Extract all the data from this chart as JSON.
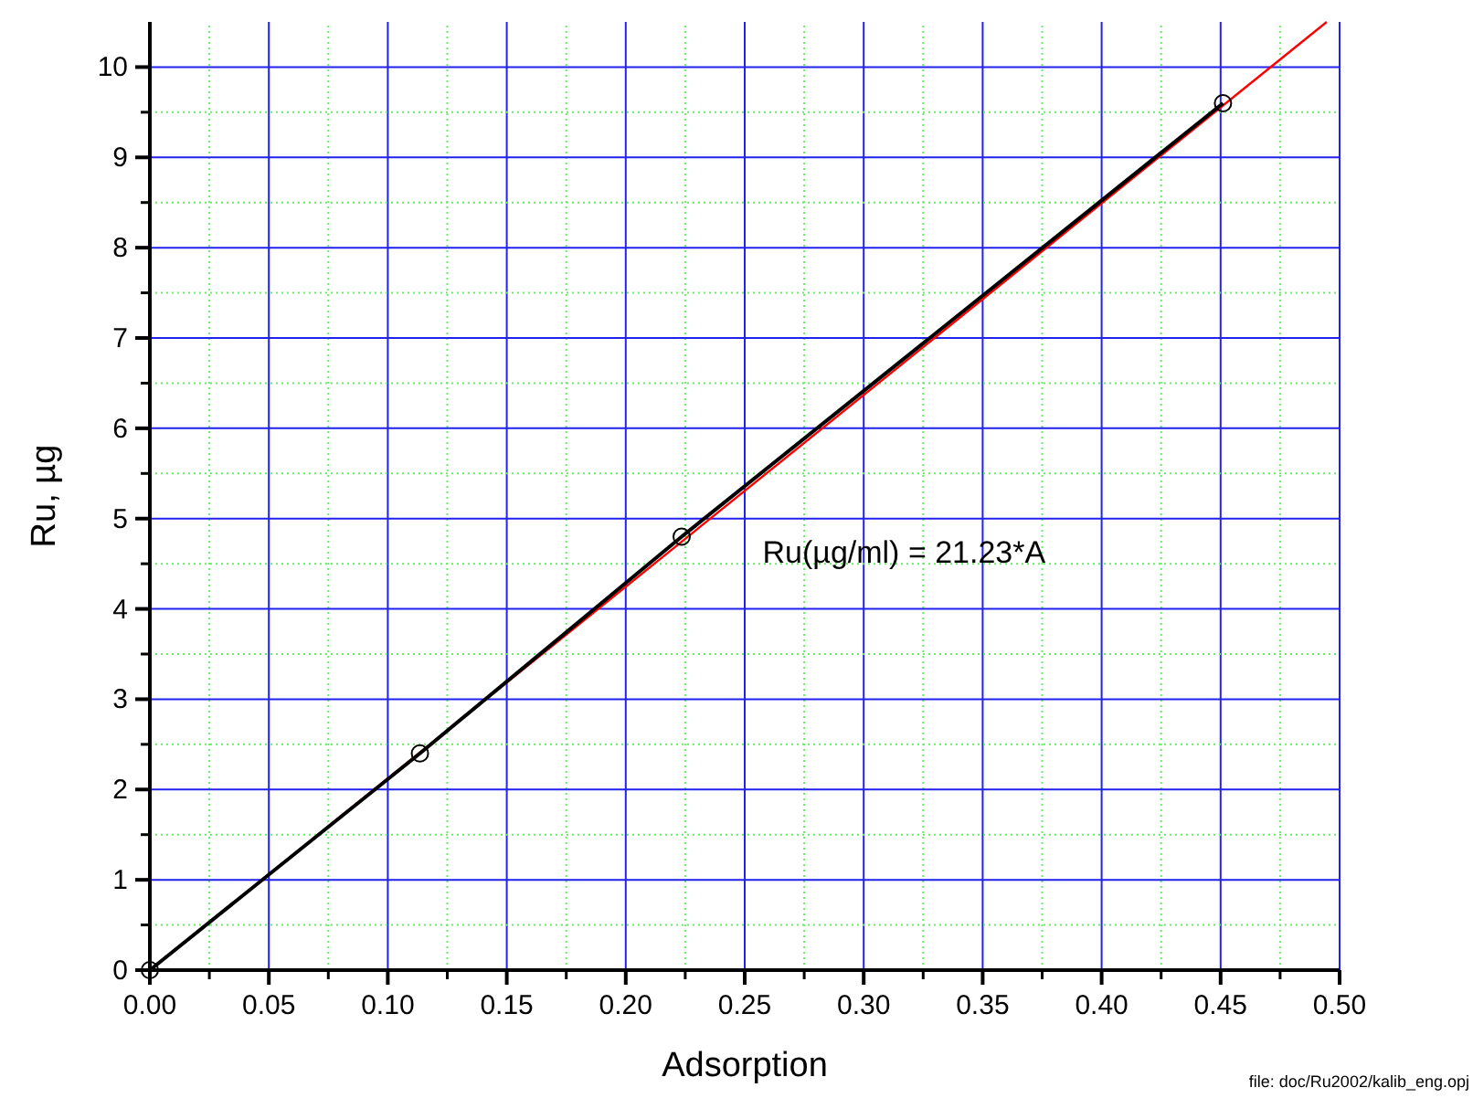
{
  "chart_data": {
    "type": "line",
    "xlabel": "Adsorption",
    "ylabel": "Ru, µg",
    "series": [
      {
        "color": "#000000",
        "marker": "circle",
        "x": [
          0,
          0.1135,
          0.2235,
          0.451
        ],
        "values": [
          0,
          2.4,
          4.8,
          9.6
        ]
      },
      {
        "color": "#ff0000",
        "marker": "none",
        "x": [
          0,
          0.4946
        ],
        "values": [
          0,
          10.5
        ]
      }
    ],
    "xlim": [
      0,
      0.5
    ],
    "xticks": [
      {
        "value": 0,
        "label": "0.00"
      },
      {
        "value": 0.025,
        "label": null
      },
      {
        "value": 0.05,
        "label": "0.05"
      },
      {
        "value": 0.075,
        "label": null
      },
      {
        "value": 0.1,
        "label": "0.10"
      },
      {
        "value": 0.125,
        "label": null
      },
      {
        "value": 0.15,
        "label": "0.15"
      },
      {
        "value": 0.175,
        "label": null
      },
      {
        "value": 0.2,
        "label": "0.20"
      },
      {
        "value": 0.225,
        "label": null
      },
      {
        "value": 0.25,
        "label": "0.25"
      },
      {
        "value": 0.275,
        "label": null
      },
      {
        "value": 0.3,
        "label": "0.30"
      },
      {
        "value": 0.325,
        "label": null
      },
      {
        "value": 0.35,
        "label": "0.35"
      },
      {
        "value": 0.375,
        "label": null
      },
      {
        "value": 0.4,
        "label": "0.40"
      },
      {
        "value": 0.425,
        "label": null
      },
      {
        "value": 0.45,
        "label": "0.45"
      },
      {
        "value": 0.475,
        "label": null
      },
      {
        "value": 0.5,
        "label": "0.50"
      }
    ],
    "ylim": [
      0,
      10.5
    ],
    "yticks": [
      0,
      {
        "value": 0.5,
        "label": null
      },
      1,
      {
        "value": 1.5,
        "label": null
      },
      2,
      {
        "value": 2.5,
        "label": null
      },
      3,
      {
        "value": 3.5,
        "label": null
      },
      4,
      {
        "value": 4.5,
        "label": null
      },
      5,
      {
        "value": 5.5,
        "label": null
      },
      6,
      {
        "value": 6.5,
        "label": null
      },
      7,
      {
        "value": 7.5,
        "label": null
      },
      8,
      {
        "value": 8.5,
        "label": null
      },
      9,
      {
        "value": 9.5,
        "label": null
      },
      10
    ],
    "grid": true,
    "annotations": [
      "Ru(µg/ml) = 21.23*A",
      "file: doc/Ru2002/kalib_eng.opj"
    ]
  }
}
